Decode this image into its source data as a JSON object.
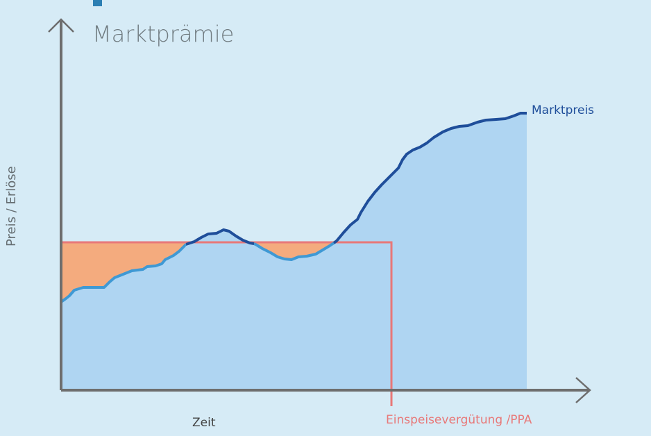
{
  "title": "Marktprämie",
  "axes": {
    "x_label": "Zeit",
    "y_label": "Preis / Erlöse"
  },
  "series": {
    "market_price": {
      "label": "Marktpreis",
      "color": "#1f4e9a",
      "fill": "#afd5f2"
    },
    "feed_in": {
      "label": "Einspeisevergütung /PPA",
      "color": "#e87878",
      "fill": "#f4ab7e"
    }
  },
  "colors": {
    "background": "#d6ebf6",
    "axis": "#707070",
    "light_line": "#3f99d4"
  }
}
